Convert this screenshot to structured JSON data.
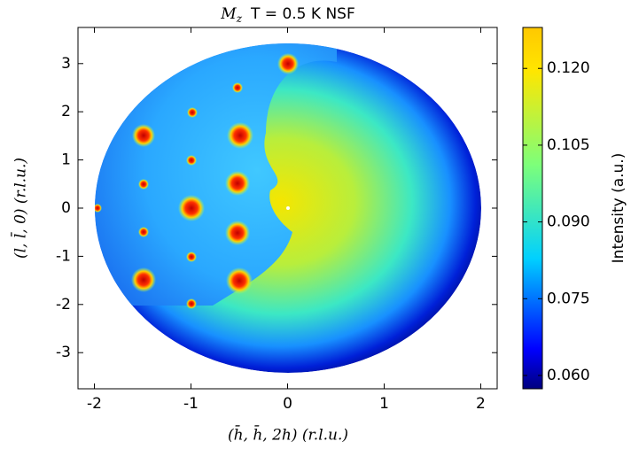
{
  "chart_data": {
    "type": "heatmap",
    "title": {
      "symbol": "M",
      "subscript": "z",
      "text": "T = 0.5 K NSF"
    },
    "x_label": "(h̄, h̄, 2h) (r.l.u.)",
    "y_label": "(l, l̄, 0) (r.l.u.)",
    "colorbar_label": "Intensity (a.u.)",
    "xlim": [
      -2.17,
      2.17
    ],
    "xticks": [
      -2,
      -1,
      0,
      1,
      2
    ],
    "ylim": [
      -3.75,
      3.75
    ],
    "yticks": [
      -3,
      -2,
      -1,
      0,
      1,
      2,
      3
    ],
    "clim": [
      0.0574,
      0.128
    ],
    "cticks": [
      {
        "value": 0.06,
        "label": "0.060"
      },
      {
        "value": 0.075,
        "label": "0.075"
      },
      {
        "value": 0.09,
        "label": "0.090"
      },
      {
        "value": 0.105,
        "label": "0.105"
      },
      {
        "value": 0.12,
        "label": "0.120"
      }
    ],
    "colormap": "jet"
  }
}
